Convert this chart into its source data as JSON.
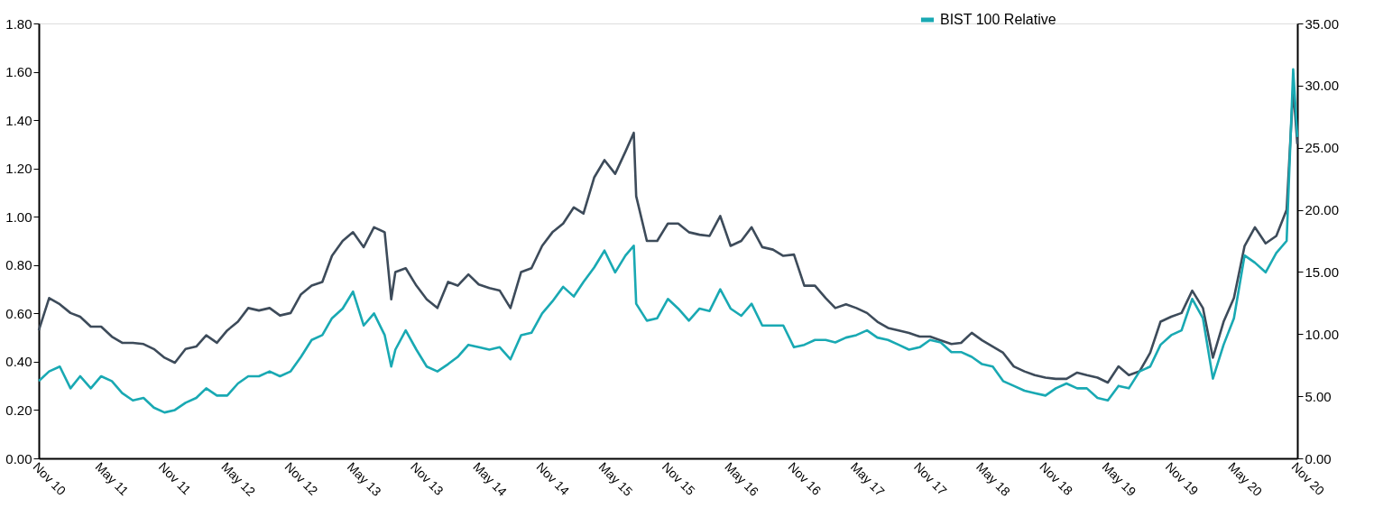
{
  "chart_data": {
    "type": "line",
    "legend": "top right",
    "line_style": "solid",
    "x": [
      "2010-11",
      "2010-12",
      "2011-01",
      "2011-02",
      "2011-03",
      "2011-04",
      "2011-05",
      "2011-06",
      "2011-07",
      "2011-08",
      "2011-09",
      "2011-10",
      "2011-11",
      "2011-12",
      "2012-01",
      "2012-02",
      "2012-03",
      "2012-04",
      "2012-05",
      "2012-06",
      "2012-07",
      "2012-08",
      "2012-09",
      "2012-10",
      "2012-11",
      "2012-12",
      "2013-01",
      "2013-02",
      "2013-03",
      "2013-04",
      "2013-05",
      "2013-06",
      "2013-07",
      "2013-08",
      "2013-08-20",
      "2013-09",
      "2013-10",
      "2013-11",
      "2013-12",
      "2014-01",
      "2014-02",
      "2014-03",
      "2014-04",
      "2014-05",
      "2014-06",
      "2014-07",
      "2014-08",
      "2014-09",
      "2014-10",
      "2014-11",
      "2014-12",
      "2015-01",
      "2015-02",
      "2015-03",
      "2015-04",
      "2015-05",
      "2015-06",
      "2015-07",
      "2015-07-25",
      "2015-08",
      "2015-09",
      "2015-10",
      "2015-11",
      "2015-12",
      "2016-01",
      "2016-02",
      "2016-03",
      "2016-04",
      "2016-05",
      "2016-06",
      "2016-07",
      "2016-08",
      "2016-09",
      "2016-10",
      "2016-11",
      "2016-12",
      "2017-01",
      "2017-02",
      "2017-03",
      "2017-04",
      "2017-05",
      "2017-06",
      "2017-07",
      "2017-08",
      "2017-09",
      "2017-10",
      "2017-11",
      "2017-12",
      "2018-01",
      "2018-02",
      "2018-03",
      "2018-04",
      "2018-05",
      "2018-06",
      "2018-07",
      "2018-08",
      "2018-09",
      "2018-10",
      "2018-11",
      "2018-12",
      "2019-01",
      "2019-02",
      "2019-03",
      "2019-04",
      "2019-05",
      "2019-06",
      "2019-07",
      "2019-08",
      "2019-09",
      "2019-10",
      "2019-11",
      "2019-12",
      "2020-01",
      "2020-02",
      "2020-03",
      "2020-04",
      "2020-05",
      "2020-06",
      "2020-07",
      "2020-08",
      "2020-09",
      "2020-10",
      "2020-10-20",
      "2020-11"
    ],
    "xlim": [
      "2010-11",
      "2020-11"
    ],
    "xticks": [
      {
        "value": "2010-11",
        "label": "Nov 10"
      },
      {
        "value": "2011-05",
        "label": "May 11"
      },
      {
        "value": "2011-11",
        "label": "Nov 11"
      },
      {
        "value": "2012-05",
        "label": "May 12"
      },
      {
        "value": "2012-11",
        "label": "Nov 12"
      },
      {
        "value": "2013-05",
        "label": "May 13"
      },
      {
        "value": "2013-11",
        "label": "Nov 13"
      },
      {
        "value": "2014-05",
        "label": "May 14"
      },
      {
        "value": "2014-11",
        "label": "Nov 14"
      },
      {
        "value": "2015-05",
        "label": "May 15"
      },
      {
        "value": "2015-11",
        "label": "Nov 15"
      },
      {
        "value": "2016-05",
        "label": "May 16"
      },
      {
        "value": "2016-11",
        "label": "Nov 16"
      },
      {
        "value": "2017-05",
        "label": "May 17"
      },
      {
        "value": "2017-11",
        "label": "Nov 17"
      },
      {
        "value": "2018-05",
        "label": "May 18"
      },
      {
        "value": "2018-11",
        "label": "Nov 18"
      },
      {
        "value": "2019-05",
        "label": "May 19"
      },
      {
        "value": "2019-11",
        "label": "Nov 19"
      },
      {
        "value": "2020-05",
        "label": "May 20"
      },
      {
        "value": "2020-11",
        "label": "Nov 20"
      }
    ],
    "ylim": [
      0,
      1.8
    ],
    "yticks": [
      {
        "value": 0,
        "label": "0.00"
      },
      {
        "value": 0.2,
        "label": "0.20"
      },
      {
        "value": 0.4,
        "label": "0.40"
      },
      {
        "value": 0.6,
        "label": "0.60"
      },
      {
        "value": 0.8,
        "label": "0.80"
      },
      {
        "value": 1.0,
        "label": "1.00"
      },
      {
        "value": 1.2,
        "label": "1.20"
      },
      {
        "value": 1.4,
        "label": "1.40"
      },
      {
        "value": 1.6,
        "label": "1.60"
      },
      {
        "value": 1.8,
        "label": "1.80"
      }
    ],
    "y2lim": [
      0,
      35
    ],
    "y2ticks": [
      {
        "value": 0,
        "label": "0.00"
      },
      {
        "value": 5,
        "label": "5.00"
      },
      {
        "value": 10,
        "label": "10.00"
      },
      {
        "value": 15,
        "label": "15.00"
      },
      {
        "value": 20,
        "label": "20.00"
      },
      {
        "value": 25,
        "label": "25.00"
      },
      {
        "value": 30,
        "label": "30.00"
      },
      {
        "value": 35,
        "label": "35.00"
      }
    ],
    "series": [
      {
        "name": "BIST 100 Relative",
        "color": "#19a9b3",
        "values": [
          0.32,
          0.36,
          0.38,
          0.29,
          0.34,
          0.29,
          0.34,
          0.32,
          0.27,
          0.24,
          0.25,
          0.21,
          0.19,
          0.2,
          0.23,
          0.25,
          0.29,
          0.26,
          0.26,
          0.31,
          0.34,
          0.34,
          0.36,
          0.34,
          0.36,
          0.42,
          0.49,
          0.51,
          0.58,
          0.62,
          0.69,
          0.55,
          0.6,
          0.51,
          0.38,
          0.45,
          0.53,
          0.45,
          0.38,
          0.36,
          0.39,
          0.42,
          0.47,
          0.46,
          0.45,
          0.46,
          0.41,
          0.51,
          0.52,
          0.6,
          0.65,
          0.71,
          0.67,
          0.73,
          0.79,
          0.86,
          0.77,
          0.84,
          0.88,
          0.64,
          0.57,
          0.58,
          0.66,
          0.62,
          0.57,
          0.62,
          0.61,
          0.7,
          0.62,
          0.59,
          0.64,
          0.55,
          0.55,
          0.55,
          0.46,
          0.47,
          0.49,
          0.49,
          0.48,
          0.5,
          0.51,
          0.53,
          0.5,
          0.49,
          0.47,
          0.45,
          0.46,
          0.49,
          0.48,
          0.44,
          0.44,
          0.42,
          0.39,
          0.38,
          0.32,
          0.3,
          0.28,
          0.27,
          0.26,
          0.29,
          0.31,
          0.29,
          0.29,
          0.25,
          0.24,
          0.3,
          0.29,
          0.36,
          0.38,
          0.47,
          0.51,
          0.53,
          0.66,
          0.58,
          0.33,
          0.47,
          0.58,
          0.84,
          0.81,
          0.77,
          0.85,
          0.9,
          1.61,
          1.33
        ]
      },
      {
        "color": "#3d4b5a",
        "axis": "y2",
        "values": [
          10.3,
          12.9,
          12.4,
          11.7,
          11.4,
          10.6,
          10.6,
          9.8,
          9.3,
          9.3,
          9.2,
          8.8,
          8.1,
          7.7,
          8.8,
          9.0,
          9.9,
          9.3,
          10.3,
          11.0,
          12.1,
          11.9,
          12.1,
          11.5,
          11.7,
          13.2,
          13.9,
          14.2,
          16.3,
          17.5,
          18.2,
          17.0,
          18.6,
          18.2,
          12.8,
          15.0,
          15.3,
          13.9,
          12.8,
          12.1,
          14.2,
          13.9,
          14.8,
          14.0,
          13.7,
          13.5,
          12.1,
          15.0,
          15.3,
          17.1,
          18.2,
          18.9,
          20.2,
          19.7,
          22.6,
          24.0,
          22.9,
          24.7,
          26.2,
          21.1,
          17.5,
          17.5,
          18.9,
          18.9,
          18.2,
          18.0,
          17.9,
          19.5,
          17.1,
          17.5,
          18.6,
          17.0,
          16.8,
          16.3,
          16.4,
          13.9,
          13.9,
          12.9,
          12.1,
          12.4,
          12.1,
          11.7,
          11.0,
          10.5,
          10.3,
          10.1,
          9.8,
          9.8,
          9.5,
          9.2,
          9.3,
          10.1,
          9.5,
          9.0,
          8.5,
          7.4,
          7.0,
          6.7,
          6.5,
          6.4,
          6.4,
          6.9,
          6.7,
          6.5,
          6.1,
          7.4,
          6.7,
          7.0,
          8.5,
          11.0,
          11.4,
          11.7,
          13.5,
          12.1,
          8.1,
          11.0,
          12.9,
          17.1,
          18.6,
          17.3,
          17.9,
          20.0,
          29.8,
          25.3
        ]
      }
    ]
  }
}
